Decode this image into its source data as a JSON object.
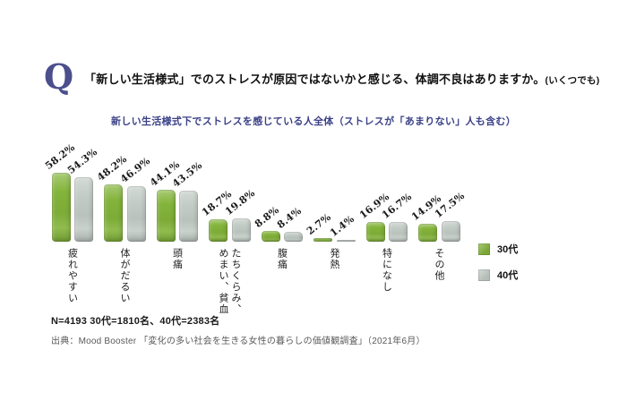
{
  "header": {
    "q_mark": "Q",
    "question": "「新しい生活様式」でのストレスが原因ではないかと感じる、体調不良はありますか。",
    "question_note": "(いくつでも)"
  },
  "chart_data": {
    "type": "bar",
    "title": "新しい生活様式下でストレスを感じている人全体（ストレスが「あまりない」人も含む）",
    "categories": [
      "疲れやすい",
      "体がだるい",
      "頭痛",
      "たちくらみ、\nめまい、貧血",
      "腹痛",
      "発熱",
      "特になし",
      "その他"
    ],
    "series": [
      {
        "name": "30代",
        "color": "#83b43a",
        "values": [
          58.2,
          48.2,
          44.1,
          18.7,
          8.8,
          2.7,
          16.9,
          14.9
        ]
      },
      {
        "name": "40代",
        "color": "#c3ccc6",
        "values": [
          54.3,
          46.9,
          43.5,
          19.8,
          8.4,
          1.4,
          16.7,
          17.5
        ]
      }
    ],
    "value_suffix": "%",
    "value_labels_rotation_deg": -38,
    "ylim": [
      0,
      60
    ],
    "grid": false,
    "legend_position": "right",
    "xlabel": "",
    "ylabel": ""
  },
  "colors": {
    "accent_indigo": "#4b4f8c",
    "series_30s_green": "#83b43a",
    "series_40s_gray": "#c3ccc6",
    "background": "#ffffff"
  },
  "footer": {
    "sample_note": "N=4193 30代=1810名、40代=2383名",
    "source": "出典：Mood Booster 「変化の多い社会を生きる女性の暮らしの価値観調査」（2021年6月）"
  }
}
